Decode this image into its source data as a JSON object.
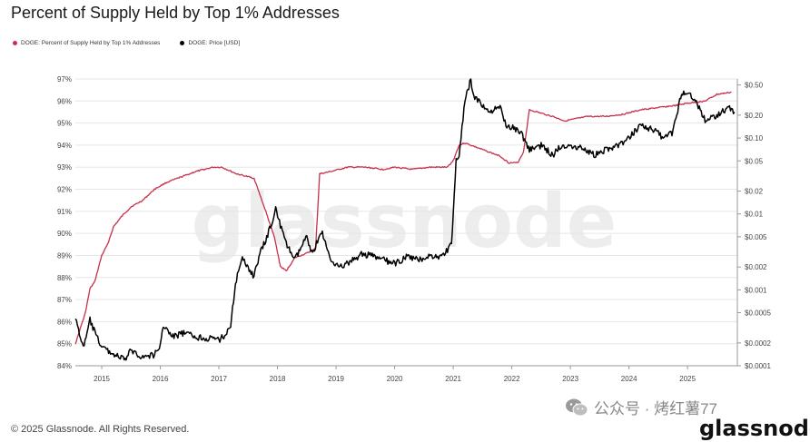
{
  "title": "Percent of Supply Held by Top 1% Addresses",
  "footer": "© 2025 Glassnode. All Rights Reserved.",
  "social_label": "公众号 · 烤红薯77",
  "brand": "glassnode",
  "watermark": "glassnode",
  "colors": {
    "supply": "#c8304a",
    "price": "#000000",
    "grid": "#e6e6e6"
  },
  "icons": {
    "social": "wechat-icon"
  },
  "chart_data": {
    "type": "line",
    "legend": [
      {
        "name": "DOGE: Percent of Supply Held by Top 1% Addresses",
        "color": "#c8304a"
      },
      {
        "name": "DOGE: Price [USD]",
        "color": "#000000"
      }
    ],
    "x_range": [
      2014.55,
      2025.85
    ],
    "x_ticks": [
      "2015",
      "2016",
      "2017",
      "2018",
      "2019",
      "2020",
      "2021",
      "2022",
      "2023",
      "2024",
      "2025"
    ],
    "y_left": {
      "label": "",
      "range": [
        84,
        97
      ],
      "ticks": [
        "84%",
        "85%",
        "86%",
        "87%",
        "88%",
        "89%",
        "90%",
        "91%",
        "92%",
        "93%",
        "94%",
        "95%",
        "96%",
        "97%"
      ]
    },
    "y_right": {
      "label": "",
      "scale": "log",
      "range": [
        0.0001,
        0.6
      ],
      "ticks": [
        {
          "label": "$0.0001",
          "value": 0.0001
        },
        {
          "label": "$0.0002",
          "value": 0.0002
        },
        {
          "label": "$0.0005",
          "value": 0.0005
        },
        {
          "label": "$0.001",
          "value": 0.001
        },
        {
          "label": "$0.002",
          "value": 0.002
        },
        {
          "label": "$0.005",
          "value": 0.005
        },
        {
          "label": "$0.01",
          "value": 0.01
        },
        {
          "label": "$0.02",
          "value": 0.02
        },
        {
          "label": "$0.05",
          "value": 0.05
        },
        {
          "label": "$0.10",
          "value": 0.1
        },
        {
          "label": "$0.20",
          "value": 0.2
        },
        {
          "label": "$0.50",
          "value": 0.5
        }
      ]
    },
    "grid": "horizontal",
    "series": [
      {
        "name": "DOGE: Percent of Supply Held by Top 1% Addresses",
        "axis": "left",
        "x": [
          2014.55,
          2014.6,
          2014.72,
          2014.8,
          2014.88,
          2014.95,
          2015.0,
          2015.1,
          2015.2,
          2015.35,
          2015.5,
          2015.7,
          2015.9,
          2016.1,
          2016.3,
          2016.6,
          2016.9,
          2017.05,
          2017.3,
          2017.6,
          2017.8,
          2017.95,
          2018.05,
          2018.15,
          2018.3,
          2018.5,
          2018.65,
          2018.72,
          2018.9,
          2019.2,
          2019.5,
          2019.8,
          2020.0,
          2020.3,
          2020.6,
          2020.9,
          2021.0,
          2021.1,
          2021.2,
          2021.3,
          2021.5,
          2021.8,
          2021.95,
          2022.1,
          2022.2,
          2022.3,
          2022.7,
          2022.9,
          2023.1,
          2023.3,
          2023.6,
          2023.9,
          2024.2,
          2024.5,
          2024.8,
          2025.0,
          2025.3,
          2025.5,
          2025.75
        ],
        "y": [
          85.0,
          85.4,
          86.4,
          87.5,
          87.8,
          88.5,
          89.0,
          89.5,
          90.3,
          90.8,
          91.2,
          91.5,
          92.0,
          92.3,
          92.5,
          92.8,
          93.0,
          93.0,
          92.7,
          92.5,
          91.0,
          89.8,
          88.5,
          88.3,
          88.9,
          89.1,
          89.3,
          92.7,
          92.8,
          93.0,
          93.0,
          92.9,
          93.0,
          92.9,
          93.0,
          93.0,
          93.3,
          94.0,
          94.1,
          94.0,
          93.8,
          93.5,
          93.2,
          93.2,
          93.7,
          95.6,
          95.3,
          95.1,
          95.2,
          95.3,
          95.3,
          95.4,
          95.6,
          95.7,
          95.8,
          95.9,
          96.0,
          96.3,
          96.4
        ]
      },
      {
        "name": "DOGE: Price [USD]",
        "axis": "right",
        "x": [
          2014.55,
          2014.62,
          2014.7,
          2014.8,
          2014.9,
          2015.0,
          2015.15,
          2015.3,
          2015.4,
          2015.5,
          2015.7,
          2015.9,
          2016.0,
          2016.05,
          2016.2,
          2016.4,
          2016.6,
          2016.8,
          2017.0,
          2017.1,
          2017.2,
          2017.3,
          2017.4,
          2017.5,
          2017.6,
          2017.7,
          2017.8,
          2017.9,
          2017.97,
          2018.05,
          2018.15,
          2018.3,
          2018.5,
          2018.6,
          2018.75,
          2018.9,
          2019.1,
          2019.3,
          2019.45,
          2019.6,
          2019.8,
          2020.0,
          2020.2,
          2020.4,
          2020.6,
          2020.8,
          2020.97,
          2021.05,
          2021.1,
          2021.2,
          2021.3,
          2021.35,
          2021.45,
          2021.6,
          2021.8,
          2021.9,
          2022.0,
          2022.15,
          2022.3,
          2022.5,
          2022.7,
          2022.85,
          2023.0,
          2023.2,
          2023.4,
          2023.6,
          2023.8,
          2023.95,
          2024.2,
          2024.4,
          2024.6,
          2024.75,
          2024.9,
          2025.05,
          2025.15,
          2025.3,
          2025.5,
          2025.7,
          2025.8
        ],
        "y": [
          0.00045,
          0.00025,
          0.00018,
          0.0004,
          0.00025,
          0.00018,
          0.00015,
          0.00013,
          0.00012,
          0.00016,
          0.00013,
          0.00014,
          0.00018,
          0.00035,
          0.00024,
          0.00027,
          0.00024,
          0.00023,
          0.00022,
          0.00025,
          0.00035,
          0.0014,
          0.0025,
          0.002,
          0.0015,
          0.003,
          0.0045,
          0.0075,
          0.012,
          0.007,
          0.004,
          0.0025,
          0.005,
          0.003,
          0.006,
          0.0025,
          0.002,
          0.0025,
          0.003,
          0.0028,
          0.0025,
          0.0022,
          0.0027,
          0.0025,
          0.0028,
          0.0027,
          0.004,
          0.05,
          0.06,
          0.3,
          0.6,
          0.35,
          0.3,
          0.22,
          0.25,
          0.15,
          0.14,
          0.12,
          0.07,
          0.08,
          0.06,
          0.08,
          0.08,
          0.075,
          0.06,
          0.07,
          0.08,
          0.09,
          0.15,
          0.13,
          0.1,
          0.12,
          0.4,
          0.38,
          0.3,
          0.17,
          0.2,
          0.25,
          0.22
        ]
      }
    ]
  }
}
